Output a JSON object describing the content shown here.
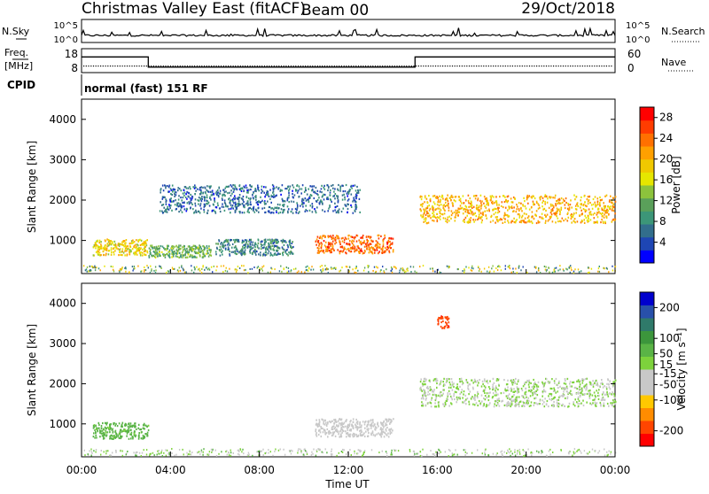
{
  "title": "Christmas Valley East (fitACF)",
  "beam_label": "Beam 00",
  "date": "29/Oct/2018",
  "cpid_label": "CPID",
  "cpid_text": "normal (fast) 151 RF",
  "colors": {
    "power_scale": [
      "#0000ff",
      "#1e46b4",
      "#326e8c",
      "#3c9678",
      "#5aa05a",
      "#8cc33c",
      "#e6e600",
      "#f0c800",
      "#ffa000",
      "#ff7000",
      "#ff3c00",
      "#ff0000"
    ],
    "velocity_scale": [
      "#ff0000",
      "#ff4500",
      "#ff8c00",
      "#ffc800",
      "#c8c8c8",
      "#c8c8c8",
      "#7dd23c",
      "#5ab446",
      "#3c963c",
      "#2f7a6a",
      "#2850aa",
      "#0000cd"
    ],
    "ground_scatter": "#c8c8c8"
  },
  "chart_data": [
    {
      "type": "line",
      "name": "noise-panel",
      "left_label": "N.Sky",
      "right_label": "N.Search",
      "yticks": [
        "10^5",
        "10^0"
      ],
      "right_yticks": [
        "10^5",
        "10^0"
      ]
    },
    {
      "type": "line",
      "name": "frequency-panel",
      "left_label_top": "Freq.",
      "left_label_bottom": "[MHz]",
      "right_label": "Nave",
      "yticks": [
        "18",
        "8"
      ],
      "right_yticks": [
        "60",
        "0"
      ],
      "frequency_steps": [
        {
          "from": 0.0,
          "to": 3.0,
          "value": 15
        },
        {
          "from": 3.0,
          "to": 15.0,
          "value": 9.5
        },
        {
          "from": 15.0,
          "to": 24.0,
          "value": 15
        }
      ]
    },
    {
      "type": "heatmap",
      "name": "power-panel",
      "ylabel": "Slant Range [km]",
      "yticks": [
        1000,
        2000,
        3000,
        4000
      ],
      "ylim": [
        180,
        4500
      ],
      "xlim": [
        0,
        24
      ],
      "colorbar_label": "Power [dB]",
      "colorbar_ticks": [
        4,
        8,
        12,
        16,
        20,
        24,
        28
      ],
      "colorbar_range": [
        0,
        30
      ],
      "echo_regions": [
        {
          "t0": 0.5,
          "t1": 3.0,
          "r0": 650,
          "r1": 1050,
          "level": 18
        },
        {
          "t0": 3.0,
          "t1": 5.8,
          "r0": 600,
          "r1": 900,
          "level": 12
        },
        {
          "t0": 6.0,
          "t1": 9.5,
          "r0": 650,
          "r1": 1050,
          "level": 8
        },
        {
          "t0": 10.5,
          "t1": 14.0,
          "r0": 700,
          "r1": 1150,
          "level": 24
        },
        {
          "t0": 15.2,
          "t1": 24.0,
          "r0": 1450,
          "r1": 2150,
          "level": 20
        },
        {
          "t0": 3.5,
          "t1": 12.5,
          "r0": 1700,
          "r1": 2400,
          "level": 6
        }
      ]
    },
    {
      "type": "heatmap",
      "name": "velocity-panel",
      "ylabel": "Slant Range [km]",
      "yticks": [
        1000,
        2000,
        3000,
        4000
      ],
      "ylim": [
        180,
        4500
      ],
      "xlim": [
        0,
        24
      ],
      "xlabel": "Time UT",
      "xticks": [
        "00:00",
        "04:00",
        "08:00",
        "12:00",
        "16:00",
        "20:00",
        "00:00"
      ],
      "colorbar_label": "Velocity [m s⁻¹]",
      "colorbar_ticks": [
        -200,
        -100,
        -50,
        -15,
        15,
        50,
        100,
        200
      ],
      "colorbar_range": [
        -250,
        250
      ],
      "echo_regions": [
        {
          "t0": 0.5,
          "t1": 3.0,
          "r0": 650,
          "r1": 1050,
          "velocity": 50
        },
        {
          "t0": 10.5,
          "t1": 14.0,
          "r0": 700,
          "r1": 1150,
          "velocity": -30
        },
        {
          "t0": 15.2,
          "t1": 24.0,
          "r0": 1450,
          "r1": 2150,
          "velocity": 0
        },
        {
          "t0": 16.0,
          "t1": 16.5,
          "r0": 3400,
          "r1": 3700,
          "velocity": -200
        }
      ]
    }
  ]
}
